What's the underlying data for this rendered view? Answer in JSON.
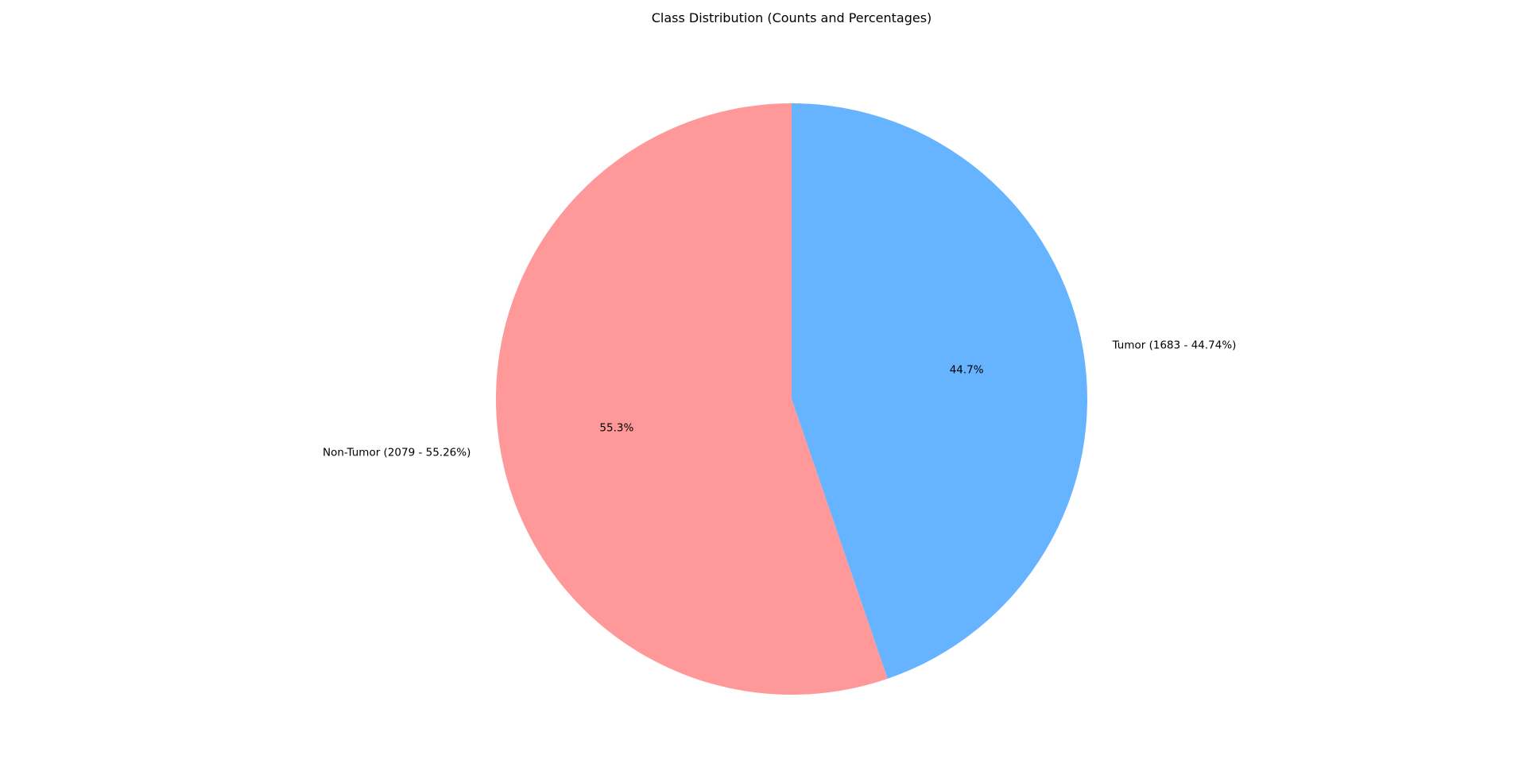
{
  "chart_data": {
    "type": "pie",
    "title": "Class Distribution (Counts and Percentages)",
    "start_angle_deg": 90,
    "direction": "clockwise",
    "slices": [
      {
        "name": "Tumor",
        "value": 1683,
        "label": "Tumor (1683 - 44.74%)",
        "pct_label": "44.7%",
        "color": "#66b3ff"
      },
      {
        "name": "Non-Tumor",
        "value": 2079,
        "label": "Non-Tumor (2079 - 55.26%)",
        "pct_label": "55.3%",
        "color": "#ff9999"
      }
    ]
  }
}
